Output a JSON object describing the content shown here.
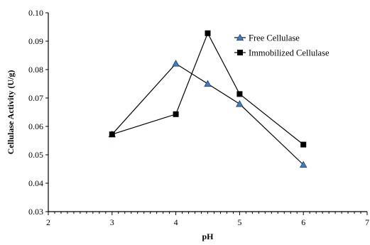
{
  "chart_data": {
    "type": "line",
    "title": "",
    "xlabel": "pH",
    "ylabel": "Cellulase Activity (U/g)",
    "xlim": [
      2,
      7
    ],
    "ylim": [
      0.03,
      0.1
    ],
    "x_ticks": [
      "2",
      "3",
      "4",
      "5",
      "6",
      "7"
    ],
    "y_ticks": [
      "0.03",
      "0.04",
      "0.05",
      "0.06",
      "0.07",
      "0.08",
      "0.09",
      "0.10"
    ],
    "grid": false,
    "legend_position": "top-right",
    "series": [
      {
        "name": "Free Cellulase",
        "marker": "triangle",
        "color": "#3f7fbf",
        "x": [
          3,
          4,
          4.5,
          5,
          6
        ],
        "y": [
          0.0572,
          0.0821,
          0.075,
          0.0679,
          0.0465
        ]
      },
      {
        "name": "Immobilized Cellulase",
        "marker": "square",
        "color": "#000000",
        "x": [
          3,
          4,
          4.5,
          5,
          6
        ],
        "y": [
          0.0572,
          0.0643,
          0.0928,
          0.0714,
          0.0536
        ]
      }
    ]
  }
}
